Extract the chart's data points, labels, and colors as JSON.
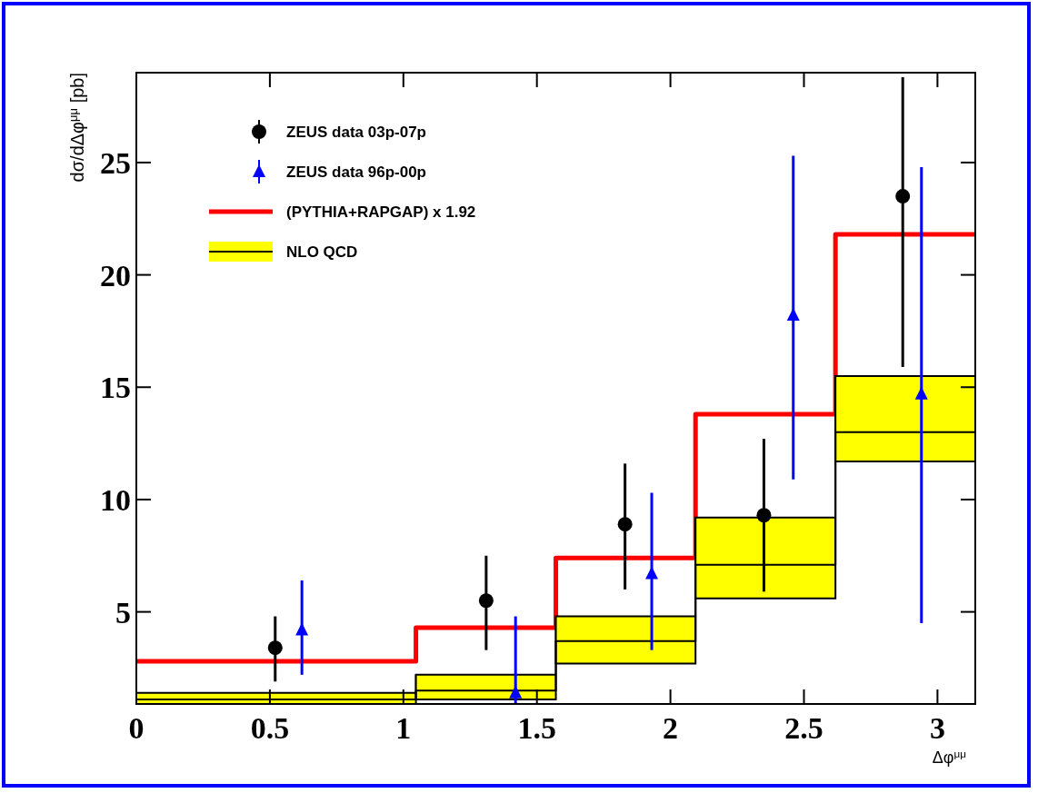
{
  "chart_data": {
    "type": "scatter",
    "xlabel": "Δφ$^{μμ}$",
    "ylabel": "dσ/dΔφ$^{μμ}$ [pb]",
    "xlim": [
      0,
      3.1416
    ],
    "xticks": [
      0,
      0.5,
      1,
      1.5,
      2,
      2.5,
      3
    ],
    "ylim": [
      0.9,
      29
    ],
    "yticks": [
      5,
      10,
      15,
      20,
      25
    ],
    "legend": "top left",
    "grid": false,
    "series": [
      {
        "name": "ZEUS data 03p-07p",
        "marker": "circle",
        "color": "#000000",
        "x": [
          0.52,
          1.31,
          1.83,
          2.35,
          2.87
        ],
        "values": [
          3.4,
          5.5,
          8.9,
          9.3,
          23.5
        ],
        "errors": [
          [
            1.9,
            4.8
          ],
          [
            3.3,
            7.5
          ],
          [
            6.0,
            11.6
          ],
          [
            5.9,
            12.7
          ],
          [
            15.9,
            28.8
          ]
        ]
      },
      {
        "name": "ZEUS data 96p-00p",
        "marker": "triangle",
        "color": "#0000ff",
        "x": [
          0.62,
          1.42,
          1.93,
          2.46,
          2.94
        ],
        "values": [
          4.2,
          1.4,
          6.7,
          18.2,
          14.7
        ],
        "errors": [
          [
            2.2,
            6.4
          ],
          [
            0.9,
            4.8
          ],
          [
            3.3,
            10.3
          ],
          [
            10.9,
            25.3
          ],
          [
            4.5,
            24.8
          ]
        ]
      },
      {
        "name": "(PYTHIA+RAPGAP) x 1.92",
        "type": "step",
        "color": "#ff0000",
        "x": [
          0,
          1.047,
          1.571,
          2.094,
          2.618,
          3.1416
        ],
        "values": [
          2.8,
          4.3,
          7.4,
          13.8,
          21.8,
          21.8
        ]
      },
      {
        "name": "NLO QCD",
        "type": "step",
        "color": "#000000",
        "colors": [
          "#ffff00",
          "#ffff00",
          "#ffff00",
          "#ffff00",
          "#ffff00",
          "#ffff00"
        ],
        "x": [
          0,
          1.047,
          1.571,
          2.094,
          2.618,
          3.1416
        ],
        "values": [
          1.1,
          1.5,
          3.7,
          7.1,
          13.0,
          13.0
        ],
        "lower": [
          0.9,
          1.1,
          2.7,
          5.6,
          11.7,
          11.7
        ],
        "upper": [
          1.4,
          2.2,
          4.8,
          9.2,
          15.5,
          15.5
        ]
      }
    ]
  }
}
